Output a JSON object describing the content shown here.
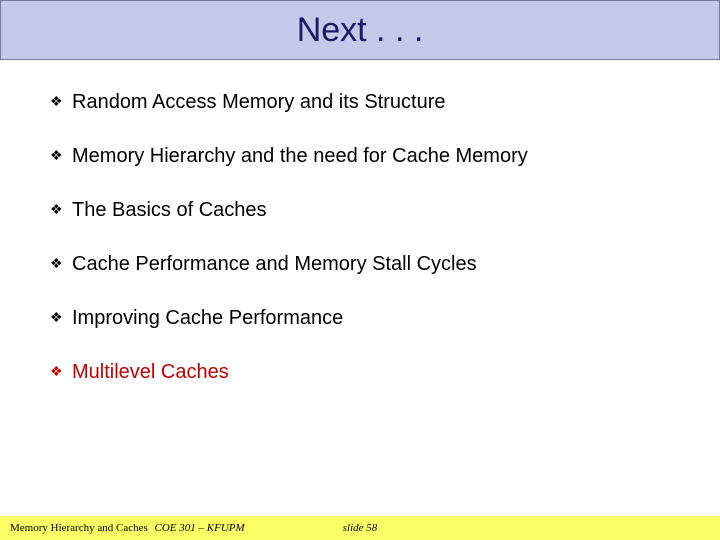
{
  "title": "Next . . .",
  "title_color": "#1a1a6a",
  "title_bg": "#c5c8e8",
  "title_fontsize": 34,
  "bullets": [
    {
      "text": "Random Access Memory and its Structure",
      "highlight": false
    },
    {
      "text": "Memory Hierarchy and the need for Cache Memory",
      "highlight": false
    },
    {
      "text": "The Basics of Caches",
      "highlight": false
    },
    {
      "text": "Cache Performance and Memory Stall Cycles",
      "highlight": false
    },
    {
      "text": "Improving Cache Performance",
      "highlight": false
    },
    {
      "text": "Multilevel Caches",
      "highlight": true
    }
  ],
  "bullet_fontsize": 20,
  "bullet_color": "#000000",
  "bullet_highlight_color": "#c00000",
  "bullet_glyph": "❖",
  "footer": {
    "topic": "Memory Hierarchy and Caches",
    "course": "COE 301 – KFUPM",
    "slide": "slide 58",
    "bg": "#ffff66"
  }
}
